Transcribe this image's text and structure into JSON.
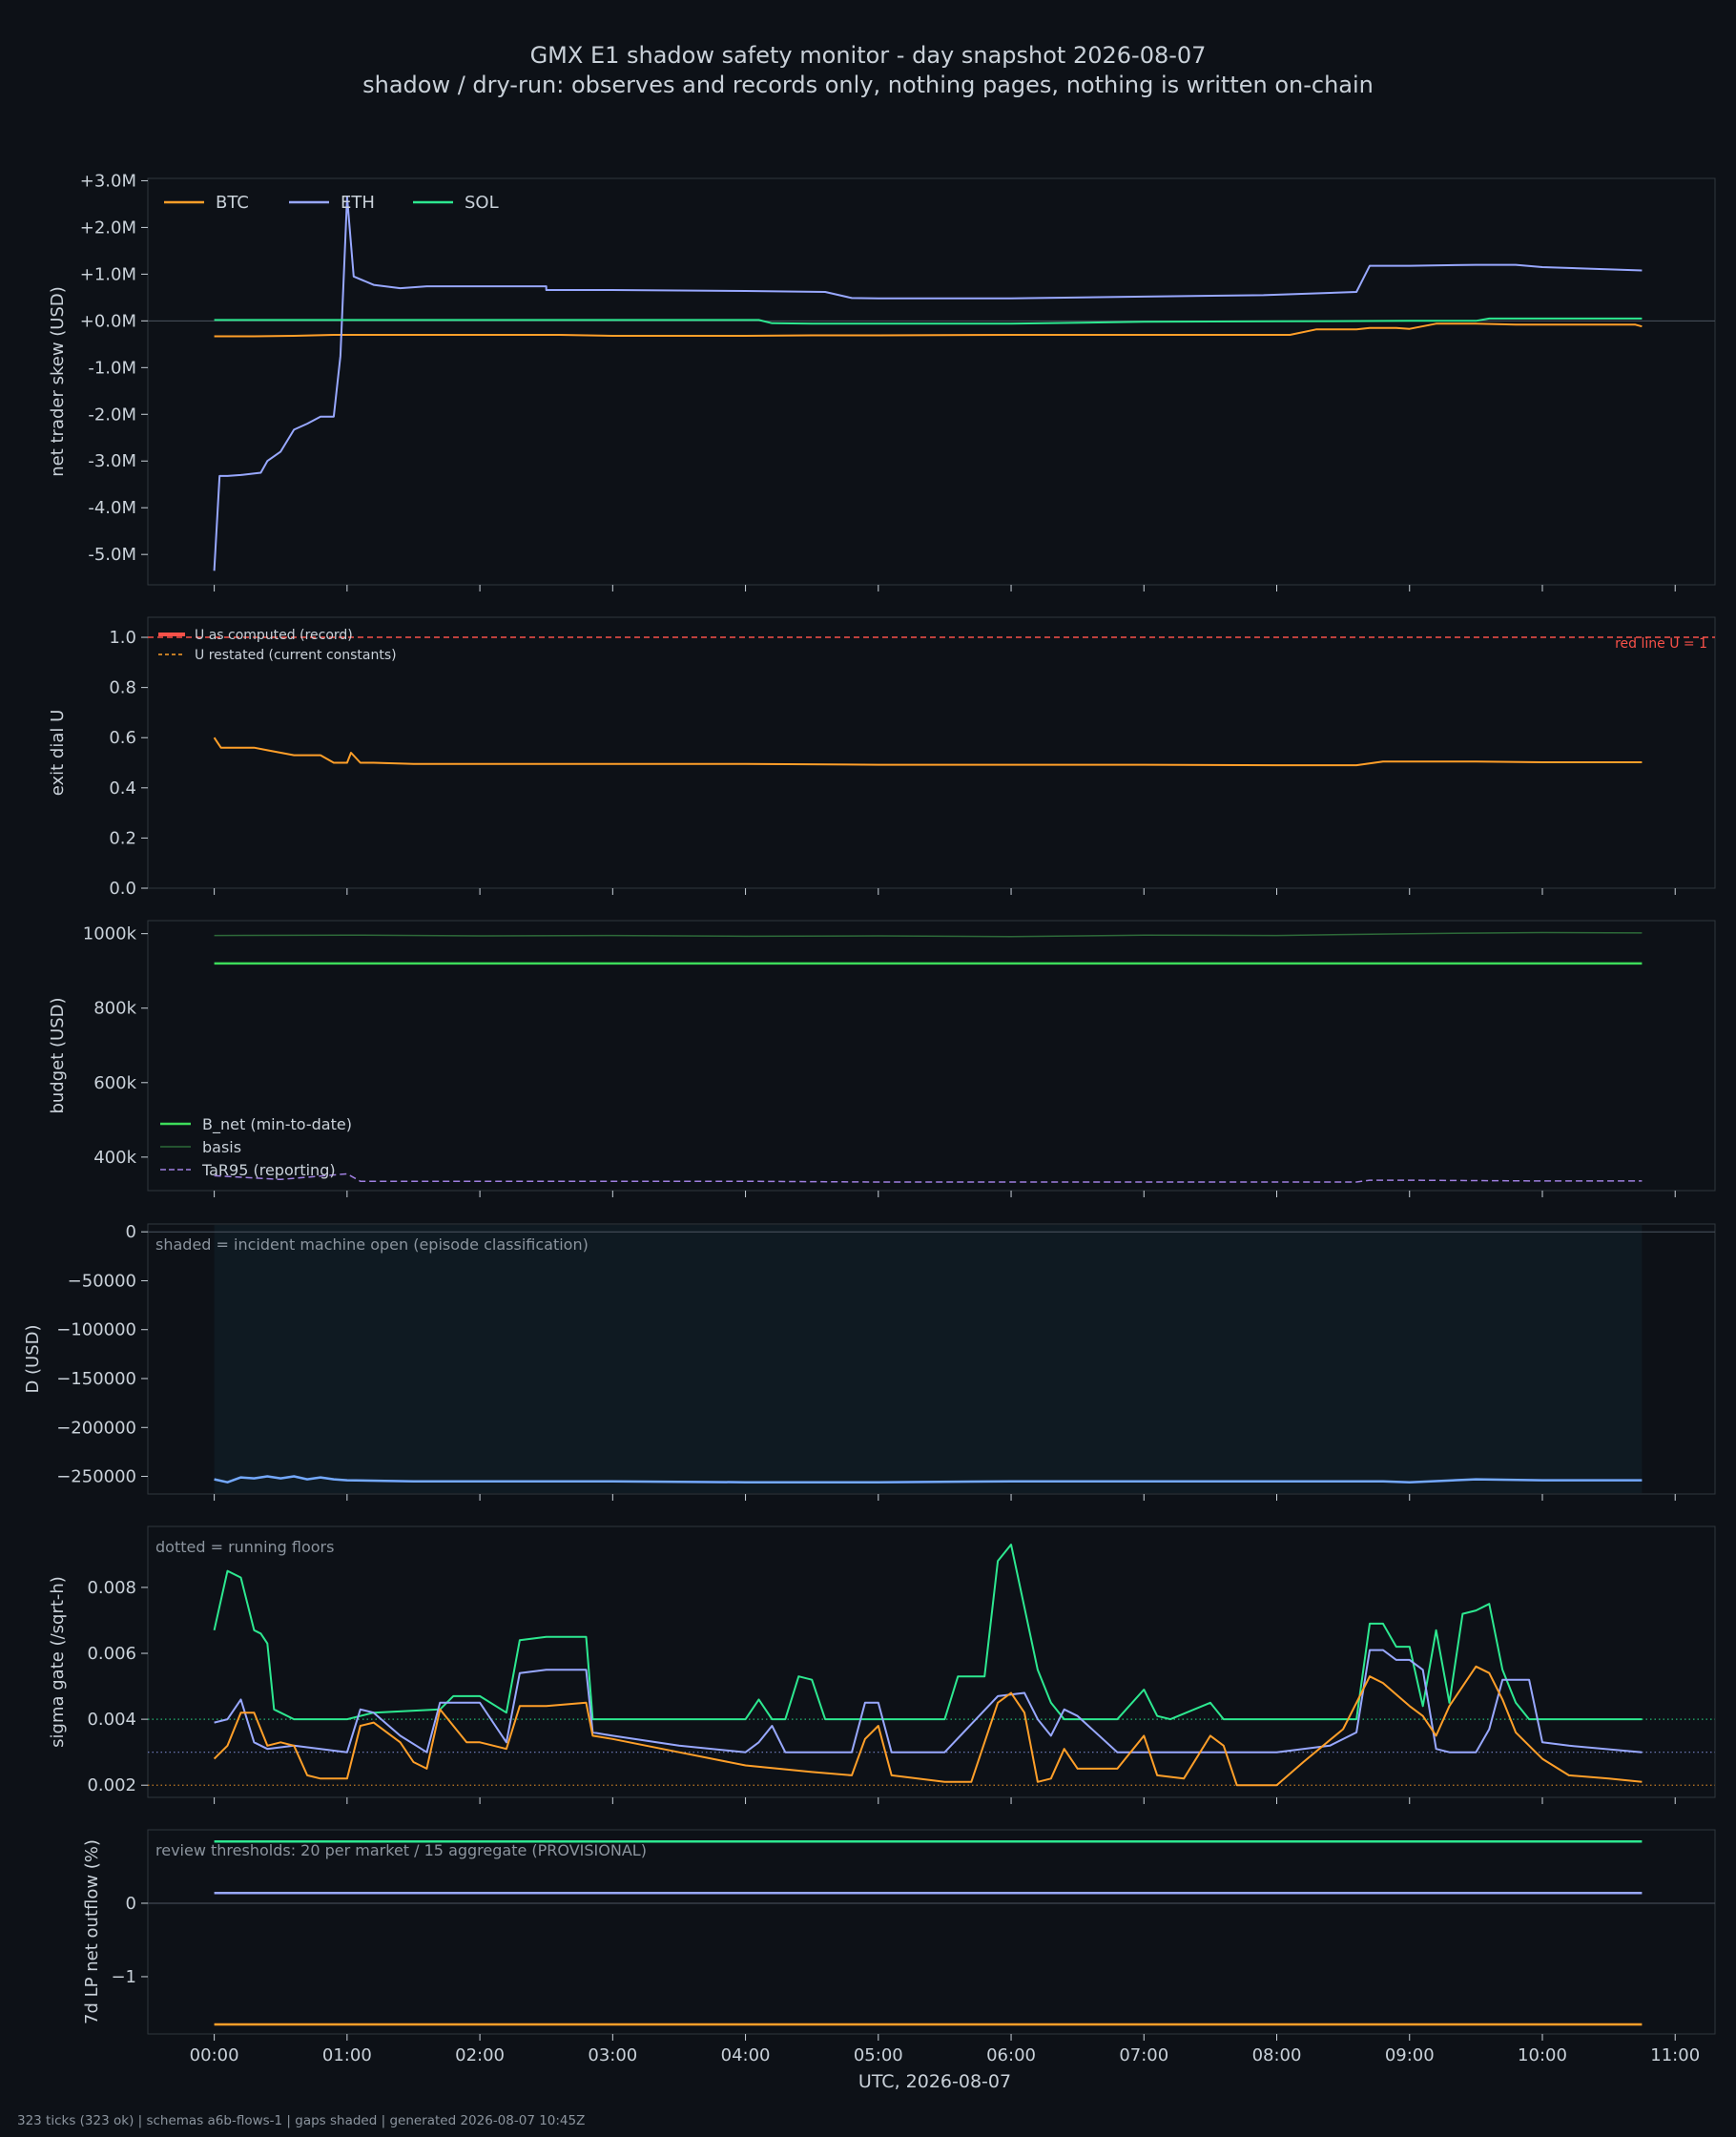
{
  "title": "GMX E1 shadow safety monitor - day snapshot 2026-08-07",
  "subtitle": "shadow / dry-run: observes and records only, nothing pages, nothing is written on-chain",
  "footer": "323 ticks (323 ok) | schemas a6b-flows-1 | gaps shaded | generated 2026-08-07 10:45Z",
  "x_axis": {
    "label": "UTC, 2026-08-07",
    "ticks": [
      "00:00",
      "01:00",
      "02:00",
      "03:00",
      "04:00",
      "05:00",
      "06:00",
      "07:00",
      "08:00",
      "09:00",
      "10:00",
      "11:00"
    ],
    "xlim_hours": [
      -0.5,
      11.3
    ]
  },
  "colors": {
    "background": "#0d1117",
    "panel": "#0d1117",
    "frame": "#30363d",
    "text": "#c9d1d9",
    "btc": "#ff9f29",
    "eth": "#98a8ff",
    "sol": "#2de890",
    "red": "#f85149",
    "b_net": "#3ddc5a",
    "basis": "#2d6a39",
    "tar95": "#9f7fe0",
    "d_line": "#74a9ff",
    "shade": "#0f1a22"
  },
  "chart_data": [
    {
      "id": "skew",
      "type": "line",
      "ylabel": "net trader skew (USD)",
      "ylim": [
        -5.65,
        3.05
      ],
      "ticks": [
        3,
        2,
        1,
        0,
        -1,
        -2,
        -3,
        -4,
        -5
      ],
      "tick_labels": [
        "+3.0M",
        "+2.0M",
        "+1.0M",
        "+0.0M",
        "-1.0M",
        "-2.0M",
        "-3.0M",
        "-4.0M",
        "-5.0M"
      ],
      "zero_line": true,
      "legend": [
        "BTC",
        "ETH",
        "SOL"
      ],
      "series": [
        {
          "name": "BTC",
          "color_key": "btc",
          "width": 2,
          "x": [
            0,
            0.3,
            0.6,
            0.9,
            1.2,
            2,
            2.6,
            3,
            4,
            4.5,
            5,
            6,
            7,
            8,
            8.1,
            8.3,
            8.6,
            8.7,
            8.9,
            9.0,
            9.2,
            9.5,
            9.8,
            10.5,
            10.7,
            10.75
          ],
          "y": [
            -0.33,
            -0.33,
            -0.32,
            -0.3,
            -0.3,
            -0.3,
            -0.3,
            -0.32,
            -0.32,
            -0.31,
            -0.31,
            -0.3,
            -0.3,
            -0.3,
            -0.3,
            -0.18,
            -0.18,
            -0.15,
            -0.15,
            -0.17,
            -0.06,
            -0.06,
            -0.08,
            -0.08,
            -0.08,
            -0.12
          ]
        },
        {
          "name": "ETH",
          "color_key": "eth",
          "width": 2,
          "x": [
            0,
            0.04,
            0.1,
            0.2,
            0.35,
            0.4,
            0.5,
            0.6,
            0.7,
            0.8,
            0.9,
            0.95,
            1.0,
            1.05,
            1.2,
            1.4,
            1.6,
            2,
            2.5,
            2.5,
            3,
            4,
            4.6,
            4.8,
            5,
            6,
            7,
            7.9,
            8.6,
            8.7,
            9.0,
            9.5,
            9.8,
            10,
            10.75
          ],
          "y": [
            -5.35,
            -3.32,
            -3.32,
            -3.3,
            -3.25,
            -3.0,
            -2.8,
            -2.33,
            -2.2,
            -2.05,
            -2.05,
            -0.75,
            2.65,
            0.95,
            0.77,
            0.7,
            0.74,
            0.74,
            0.74,
            0.66,
            0.66,
            0.64,
            0.62,
            0.49,
            0.48,
            0.48,
            0.52,
            0.55,
            0.62,
            1.18,
            1.18,
            1.2,
            1.2,
            1.15,
            1.08
          ]
        },
        {
          "name": "SOL",
          "color_key": "sol",
          "width": 2,
          "x": [
            0,
            2,
            4.1,
            4.2,
            4.5,
            5,
            6,
            7,
            8,
            9,
            9.5,
            9.6,
            10.75
          ],
          "y": [
            0.02,
            0.02,
            0.02,
            -0.05,
            -0.06,
            -0.06,
            -0.06,
            -0.02,
            -0.01,
            0.0,
            0.0,
            0.05,
            0.05
          ]
        }
      ]
    },
    {
      "id": "exit",
      "type": "line",
      "ylabel": "exit dial U",
      "ylim": [
        0,
        1.08
      ],
      "ticks": [
        1.0,
        0.8,
        0.6,
        0.4,
        0.2,
        0.0
      ],
      "tick_labels": [
        "1.0",
        "0.8",
        "0.6",
        "0.4",
        "0.2",
        "0.0"
      ],
      "legend": [
        "U as computed (record)",
        "U restated (current constants)"
      ],
      "red_line_label": "red line U = 1",
      "red_line_value": 1.0,
      "series": [
        {
          "name": "U as computed (record)",
          "color_key": "btc",
          "width": 2,
          "x": [
            0,
            0.05,
            0.1,
            0.3,
            0.4,
            0.6,
            0.8,
            0.9,
            1.0,
            1.03,
            1.1,
            1.2,
            1.5,
            2,
            3,
            4,
            5,
            6,
            7,
            8,
            8.6,
            8.8,
            9,
            9.5,
            10,
            10.75
          ],
          "y": [
            0.6,
            0.56,
            0.56,
            0.56,
            0.55,
            0.53,
            0.53,
            0.5,
            0.5,
            0.54,
            0.5,
            0.5,
            0.495,
            0.495,
            0.495,
            0.495,
            0.492,
            0.492,
            0.492,
            0.49,
            0.49,
            0.505,
            0.505,
            0.505,
            0.502,
            0.502
          ]
        }
      ]
    },
    {
      "id": "budget",
      "type": "line",
      "ylabel": "budget (USD)",
      "ylim": [
        310,
        1035
      ],
      "ticks": [
        1000,
        800,
        600,
        400
      ],
      "tick_labels": [
        "1000k",
        "800k",
        "600k",
        "400k"
      ],
      "legend": [
        "B_net (min-to-date)",
        "basis",
        "TaR95 (reporting)"
      ],
      "series": [
        {
          "name": "B_net (min-to-date)",
          "color_key": "b_net",
          "width": 2.5,
          "x": [
            0,
            10.75
          ],
          "y": [
            920,
            920
          ]
        },
        {
          "name": "basis",
          "color_key": "basis",
          "width": 1.5,
          "x": [
            0,
            1,
            2,
            3,
            4,
            5,
            6,
            7,
            8,
            9,
            10,
            10.75
          ],
          "y": [
            995,
            996,
            994,
            995,
            993,
            994,
            992,
            996,
            995,
            1000,
            1003,
            1002
          ]
        },
        {
          "name": "TaR95 (reporting)",
          "color_key": "tar95",
          "width": 1.5,
          "dashed": true,
          "x": [
            0,
            0.5,
            1.0,
            1.1,
            2,
            3,
            4,
            5,
            6,
            7,
            8,
            8.6,
            8.7,
            9,
            10,
            10.75
          ],
          "y": [
            350,
            340,
            355,
            335,
            335,
            335,
            335,
            333,
            333,
            333,
            333,
            333,
            338,
            338,
            336,
            336
          ]
        }
      ]
    },
    {
      "id": "drawdown",
      "type": "line",
      "ylabel": "D (USD)",
      "ylim": [
        -268000,
        8000
      ],
      "ticks": [
        0,
        -50000,
        -100000,
        -150000,
        -200000,
        -250000
      ],
      "tick_labels": [
        "0",
        "−50000",
        "−100000",
        "−150000",
        "−200000",
        "−250000"
      ],
      "zero_line": true,
      "shade_x": [
        0,
        10.75
      ],
      "annotation": "shaded = incident machine open (episode classification)",
      "series": [
        {
          "name": "D",
          "color_key": "d_line",
          "width": 2.5,
          "x": [
            0,
            0.1,
            0.2,
            0.3,
            0.4,
            0.5,
            0.6,
            0.7,
            0.8,
            0.9,
            1.0,
            1.5,
            2,
            3,
            4,
            5,
            6,
            7,
            8,
            8.8,
            9,
            9.5,
            10,
            10.75
          ],
          "y": [
            -253000,
            -256000,
            -251000,
            -252000,
            -250000,
            -252000,
            -250000,
            -253000,
            -251000,
            -253000,
            -254000,
            -255000,
            -255000,
            -255000,
            -256000,
            -256000,
            -255000,
            -255000,
            -255000,
            -255000,
            -256000,
            -253000,
            -254000,
            -254000
          ]
        }
      ]
    },
    {
      "id": "sigma",
      "type": "line",
      "ylabel": "sigma gate (/sqrt-h)",
      "ylim": [
        0.00163,
        0.00985
      ],
      "ticks": [
        0.008,
        0.006,
        0.004,
        0.002
      ],
      "tick_labels": [
        "0.008",
        "0.006",
        "0.004",
        "0.002"
      ],
      "annotation": "dotted = running floors",
      "floors": [
        {
          "color_key": "sol",
          "value": 0.004
        },
        {
          "color_key": "eth",
          "value": 0.003
        },
        {
          "color_key": "btc",
          "value": 0.002
        }
      ],
      "series": [
        {
          "name": "SOL",
          "color_key": "sol",
          "width": 2,
          "x": [
            0,
            0.1,
            0.2,
            0.3,
            0.35,
            0.4,
            0.45,
            0.6,
            0.8,
            1.0,
            1.2,
            1.7,
            1.8,
            2.0,
            2.2,
            2.3,
            2.5,
            2.8,
            2.85,
            4.0,
            4.1,
            4.2,
            4.3,
            4.4,
            4.5,
            4.6,
            4.8,
            5.5,
            5.6,
            5.8,
            5.9,
            6.0,
            6.2,
            6.3,
            6.4,
            6.5,
            6.8,
            7.0,
            7.1,
            7.2,
            7.5,
            7.6,
            7.7,
            8.0,
            8.5,
            8.6,
            8.7,
            8.8,
            8.9,
            9.0,
            9.1,
            9.2,
            9.3,
            9.4,
            9.5,
            9.6,
            9.7,
            9.8,
            9.9,
            10.0,
            10.75
          ],
          "y": [
            0.0067,
            0.0085,
            0.0083,
            0.0067,
            0.0066,
            0.0063,
            0.0043,
            0.004,
            0.004,
            0.004,
            0.0042,
            0.0043,
            0.0047,
            0.0047,
            0.0042,
            0.0064,
            0.0065,
            0.0065,
            0.004,
            0.004,
            0.0046,
            0.004,
            0.004,
            0.0053,
            0.0052,
            0.004,
            0.004,
            0.004,
            0.0053,
            0.0053,
            0.0088,
            0.0093,
            0.0055,
            0.0045,
            0.004,
            0.004,
            0.004,
            0.0049,
            0.0041,
            0.004,
            0.0045,
            0.004,
            0.004,
            0.004,
            0.004,
            0.004,
            0.0069,
            0.0069,
            0.0062,
            0.0062,
            0.0044,
            0.0067,
            0.0045,
            0.0072,
            0.0073,
            0.0075,
            0.0055,
            0.0045,
            0.004,
            0.004,
            0.004
          ]
        },
        {
          "name": "ETH",
          "color_key": "eth",
          "width": 2,
          "x": [
            0,
            0.1,
            0.2,
            0.3,
            0.4,
            0.6,
            1.0,
            1.1,
            1.2,
            1.4,
            1.6,
            1.7,
            2.0,
            2.2,
            2.3,
            2.5,
            2.8,
            2.85,
            3.0,
            3.5,
            4.0,
            4.1,
            4.2,
            4.3,
            4.5,
            4.8,
            4.9,
            5.0,
            5.1,
            5.5,
            5.9,
            6.1,
            6.2,
            6.3,
            6.4,
            6.5,
            6.8,
            7.0,
            8.0,
            8.4,
            8.6,
            8.7,
            8.8,
            8.9,
            9.0,
            9.1,
            9.2,
            9.3,
            9.5,
            9.6,
            9.7,
            9.8,
            9.9,
            10.0,
            10.2,
            10.75
          ],
          "y": [
            0.0039,
            0.004,
            0.0046,
            0.0033,
            0.0031,
            0.0032,
            0.003,
            0.0043,
            0.0042,
            0.0035,
            0.003,
            0.0045,
            0.0045,
            0.0033,
            0.0054,
            0.0055,
            0.0055,
            0.0036,
            0.0035,
            0.0032,
            0.003,
            0.0033,
            0.0038,
            0.003,
            0.003,
            0.003,
            0.0045,
            0.0045,
            0.003,
            0.003,
            0.0047,
            0.0048,
            0.004,
            0.0035,
            0.0043,
            0.0041,
            0.003,
            0.003,
            0.003,
            0.0032,
            0.0036,
            0.0061,
            0.0061,
            0.0058,
            0.0058,
            0.0055,
            0.0031,
            0.003,
            0.003,
            0.0037,
            0.0052,
            0.0052,
            0.0052,
            0.0033,
            0.0032,
            0.003
          ]
        },
        {
          "name": "BTC",
          "color_key": "btc",
          "width": 2,
          "x": [
            0,
            0.1,
            0.2,
            0.3,
            0.4,
            0.5,
            0.6,
            0.7,
            0.8,
            1.0,
            1.1,
            1.2,
            1.4,
            1.5,
            1.6,
            1.7,
            1.9,
            2.0,
            2.2,
            2.3,
            2.5,
            2.8,
            2.85,
            3.0,
            3.5,
            4.0,
            4.5,
            4.8,
            4.9,
            5.0,
            5.1,
            5.5,
            5.7,
            5.9,
            6.0,
            6.1,
            6.2,
            6.3,
            6.4,
            6.5,
            6.8,
            7.0,
            7.1,
            7.3,
            7.5,
            7.6,
            7.7,
            8.0,
            8.2,
            8.5,
            8.6,
            8.7,
            8.8,
            9.0,
            9.1,
            9.2,
            9.3,
            9.5,
            9.6,
            9.7,
            9.8,
            9.9,
            10.0,
            10.2,
            10.5,
            10.75
          ],
          "y": [
            0.0028,
            0.0032,
            0.0042,
            0.0042,
            0.0032,
            0.0033,
            0.0032,
            0.0023,
            0.0022,
            0.0022,
            0.0038,
            0.0039,
            0.0033,
            0.0027,
            0.0025,
            0.0043,
            0.0033,
            0.0033,
            0.0031,
            0.0044,
            0.0044,
            0.0045,
            0.0035,
            0.0034,
            0.003,
            0.0026,
            0.0024,
            0.0023,
            0.0034,
            0.0038,
            0.0023,
            0.0021,
            0.0021,
            0.0045,
            0.0048,
            0.0042,
            0.0021,
            0.0022,
            0.0031,
            0.0025,
            0.0025,
            0.0035,
            0.0023,
            0.0022,
            0.0035,
            0.0032,
            0.002,
            0.002,
            0.0027,
            0.0037,
            0.0045,
            0.0053,
            0.0051,
            0.0044,
            0.0041,
            0.0035,
            0.0044,
            0.0056,
            0.0054,
            0.0046,
            0.0036,
            0.0032,
            0.0028,
            0.0023,
            0.0022,
            0.0021
          ]
        }
      ]
    },
    {
      "id": "outflow",
      "type": "line",
      "ylabel": "7d LP net outflow (%)",
      "ylim": [
        -1.78,
        1.0
      ],
      "ticks": [
        0,
        -1
      ],
      "tick_labels": [
        "0",
        "−1"
      ],
      "zero_line": true,
      "annotation": "review thresholds: 20 per market / 15 aggregate (PROVISIONAL)",
      "series": [
        {
          "name": "SOL",
          "color_key": "sol",
          "width": 2.5,
          "x": [
            0,
            10.75
          ],
          "y": [
            0.84,
            0.84
          ]
        },
        {
          "name": "ETH",
          "color_key": "eth",
          "width": 2.5,
          "x": [
            0,
            10.75
          ],
          "y": [
            0.14,
            0.14
          ]
        },
        {
          "name": "BTC",
          "color_key": "btc",
          "width": 2.5,
          "x": [
            0,
            10.75
          ],
          "y": [
            -1.65,
            -1.65
          ]
        }
      ]
    }
  ]
}
